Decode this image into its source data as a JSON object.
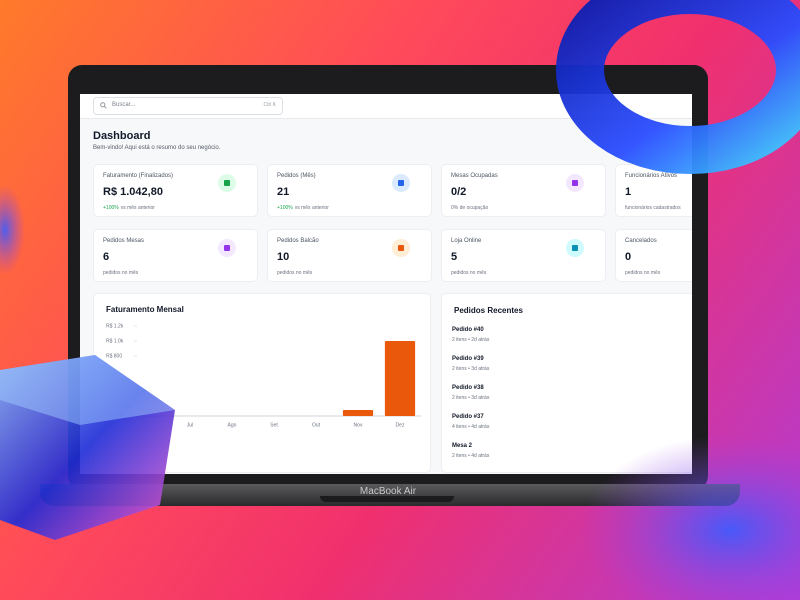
{
  "device_label": "MacBook Air",
  "search": {
    "placeholder": "Buscar...",
    "shortcut": "Ctrl K"
  },
  "header": {
    "title": "Dashboard",
    "subtitle": "Bem-vindo! Aqui está o resumo do seu negócio."
  },
  "stats": [
    {
      "label": "Faturamento (Finalizados)",
      "value": "R$ 1.042,80",
      "change": "+100%",
      "note": "vs mês anterior"
    },
    {
      "label": "Pedidos (Mês)",
      "value": "21",
      "change": "+100%",
      "note": "vs mês anterior"
    },
    {
      "label": "Mesas Ocupadas",
      "value": "0/2",
      "note": "0% de ocupação"
    },
    {
      "label": "Funcionários Ativos",
      "value": "1",
      "note": "funcionários cadastrados"
    },
    {
      "label": "Pedidos Mesas",
      "value": "6",
      "note": "pedidos no mês"
    },
    {
      "label": "Pedidos Balcão",
      "value": "10",
      "note": "pedidos no mês"
    },
    {
      "label": "Loja Online",
      "value": "5",
      "note": "pedidos no mês"
    },
    {
      "label": "Cancelados",
      "value": "0",
      "note": "pedidos no mês"
    }
  ],
  "chart_data": {
    "type": "bar",
    "title": "Faturamento Mensal",
    "categories": [
      "Jul",
      "Ago",
      "Set",
      "Out",
      "Nov",
      "Dez"
    ],
    "values": [
      0,
      0,
      0,
      0,
      80,
      1000
    ],
    "color": "#ea580c",
    "ylim": [
      0,
      1200
    ],
    "yticks": [
      {
        "value": 800,
        "label": "R$ 800"
      },
      {
        "value": 1000,
        "label": "R$ 1.0k"
      },
      {
        "value": 1200,
        "label": "R$ 1.2k"
      }
    ]
  },
  "recent_orders": {
    "title": "Pedidos Recentes",
    "items": [
      {
        "name": "Pedido #40",
        "detail": "2 itens • 2d atrás"
      },
      {
        "name": "Pedido #39",
        "detail": "2 itens • 3d atrás"
      },
      {
        "name": "Pedido #38",
        "detail": "2 itens • 3d atrás"
      },
      {
        "name": "Pedido #37",
        "detail": "4 itens • 4d atrás"
      },
      {
        "name": "Mesa 2",
        "detail": "2 itens • 4d atrás"
      }
    ]
  }
}
